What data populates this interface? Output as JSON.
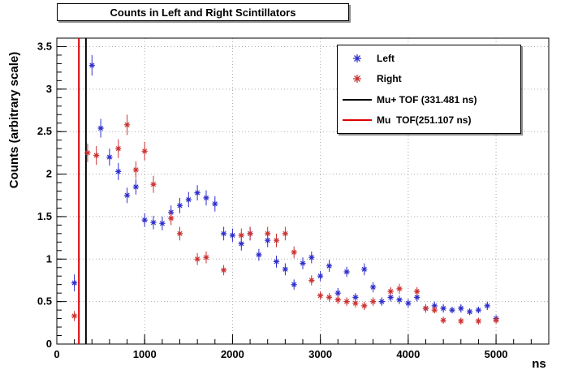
{
  "title": "Counts in Left and Right Scintillators",
  "axes": {
    "xlabel": "ns",
    "ylabel": "Counts (arbitrary scale)",
    "xlim": [
      0,
      5600
    ],
    "ylim": [
      0,
      3.6
    ],
    "x_ticks": [
      0,
      1000,
      2000,
      3000,
      4000,
      5000
    ],
    "y_ticks": [
      0,
      0.5,
      1,
      1.5,
      2,
      2.5,
      3,
      3.5
    ],
    "x_minor_step": 200,
    "y_minor_step": 0.1,
    "grid": "dotted"
  },
  "legend": {
    "entries": [
      {
        "label": "Left",
        "type": "marker",
        "color": "#3030cc"
      },
      {
        "label": "Right",
        "type": "marker",
        "color": "#cc3333"
      },
      {
        "label": "Mu+ TOF (331.481 ns)",
        "type": "line",
        "color": "#000000"
      },
      {
        "label": "Mu  TOF(251.107 ns)",
        "type": "line",
        "color": "#dd0000"
      }
    ]
  },
  "chart_data": {
    "type": "scatter",
    "title": "Counts in Left and Right Scintillators",
    "xlabel": "ns",
    "ylabel": "Counts (arbitrary scale)",
    "marker": "asterisk",
    "series": [
      {
        "name": "Left",
        "color": "#3030cc",
        "points": [
          [
            200,
            0.72,
            0.1
          ],
          [
            400,
            3.28,
            0.12
          ],
          [
            500,
            2.54,
            0.11
          ],
          [
            600,
            2.2,
            0.1
          ],
          [
            700,
            2.03,
            0.1
          ],
          [
            800,
            1.75,
            0.09
          ],
          [
            900,
            1.85,
            0.09
          ],
          [
            1000,
            1.46,
            0.08
          ],
          [
            1100,
            1.43,
            0.08
          ],
          [
            1200,
            1.42,
            0.08
          ],
          [
            1300,
            1.55,
            0.08
          ],
          [
            1400,
            1.63,
            0.09
          ],
          [
            1500,
            1.7,
            0.09
          ],
          [
            1600,
            1.78,
            0.09
          ],
          [
            1700,
            1.72,
            0.09
          ],
          [
            1800,
            1.65,
            0.09
          ],
          [
            1900,
            1.3,
            0.08
          ],
          [
            2000,
            1.28,
            0.08
          ],
          [
            2100,
            1.18,
            0.08
          ],
          [
            2200,
            1.3,
            0.08
          ],
          [
            2300,
            1.05,
            0.07
          ],
          [
            2400,
            1.22,
            0.08
          ],
          [
            2500,
            0.97,
            0.07
          ],
          [
            2600,
            0.88,
            0.07
          ],
          [
            2700,
            0.7,
            0.06
          ],
          [
            2800,
            0.95,
            0.07
          ],
          [
            2900,
            1.02,
            0.07
          ],
          [
            3000,
            0.8,
            0.06
          ],
          [
            3100,
            0.92,
            0.07
          ],
          [
            3200,
            0.6,
            0.06
          ],
          [
            3300,
            0.85,
            0.06
          ],
          [
            3400,
            0.55,
            0.05
          ],
          [
            3500,
            0.88,
            0.07
          ],
          [
            3600,
            0.67,
            0.06
          ],
          [
            3700,
            0.5,
            0.05
          ],
          [
            3800,
            0.55,
            0.05
          ],
          [
            3900,
            0.52,
            0.05
          ],
          [
            4000,
            0.48,
            0.05
          ],
          [
            4100,
            0.55,
            0.05
          ],
          [
            4200,
            0.42,
            0.05
          ],
          [
            4300,
            0.45,
            0.05
          ],
          [
            4400,
            0.42,
            0.05
          ],
          [
            4500,
            0.4,
            0.04
          ],
          [
            4600,
            0.42,
            0.05
          ],
          [
            4700,
            0.38,
            0.04
          ],
          [
            4800,
            0.4,
            0.04
          ],
          [
            4900,
            0.45,
            0.05
          ],
          [
            5000,
            0.3,
            0.04
          ]
        ]
      },
      {
        "name": "Right",
        "color": "#cc3333",
        "points": [
          [
            200,
            0.33,
            0.06
          ],
          [
            350,
            2.25,
            0.11
          ],
          [
            450,
            2.22,
            0.11
          ],
          [
            700,
            2.3,
            0.11
          ],
          [
            800,
            2.58,
            0.12
          ],
          [
            900,
            2.05,
            0.1
          ],
          [
            1000,
            2.27,
            0.11
          ],
          [
            1100,
            1.88,
            0.1
          ],
          [
            1300,
            1.48,
            0.08
          ],
          [
            1400,
            1.3,
            0.08
          ],
          [
            1600,
            1.0,
            0.07
          ],
          [
            1700,
            1.02,
            0.07
          ],
          [
            1900,
            0.87,
            0.06
          ],
          [
            2100,
            1.28,
            0.08
          ],
          [
            2200,
            1.3,
            0.08
          ],
          [
            2400,
            1.3,
            0.08
          ],
          [
            2500,
            1.22,
            0.08
          ],
          [
            2600,
            1.3,
            0.08
          ],
          [
            2700,
            1.08,
            0.07
          ],
          [
            2900,
            0.75,
            0.06
          ],
          [
            3000,
            0.57,
            0.05
          ],
          [
            3100,
            0.55,
            0.05
          ],
          [
            3200,
            0.52,
            0.05
          ],
          [
            3300,
            0.5,
            0.05
          ],
          [
            3400,
            0.48,
            0.05
          ],
          [
            3500,
            0.45,
            0.05
          ],
          [
            3600,
            0.5,
            0.05
          ],
          [
            3800,
            0.62,
            0.05
          ],
          [
            3900,
            0.65,
            0.06
          ],
          [
            4100,
            0.62,
            0.05
          ],
          [
            4200,
            0.42,
            0.05
          ],
          [
            4300,
            0.4,
            0.04
          ],
          [
            4400,
            0.28,
            0.04
          ],
          [
            4600,
            0.27,
            0.04
          ],
          [
            4800,
            0.27,
            0.04
          ],
          [
            5000,
            0.28,
            0.04
          ]
        ]
      }
    ],
    "vlines": [
      {
        "name": "Mu TOF",
        "x": 251.107,
        "color": "#dd0000",
        "width": 2
      },
      {
        "name": "Mu+ TOF",
        "x": 331.481,
        "color": "#000000",
        "width": 2
      }
    ]
  }
}
